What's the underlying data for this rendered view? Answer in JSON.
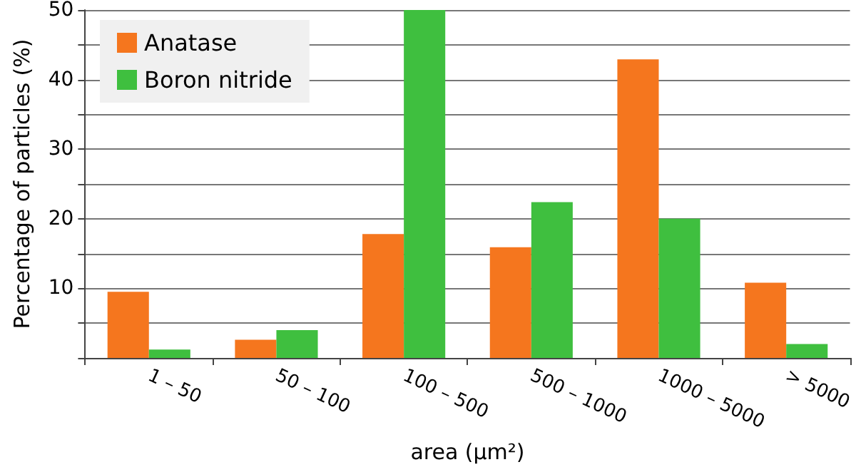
{
  "chart_data": {
    "type": "bar",
    "xlabel": "area (µm²)",
    "ylabel": "Percentage of particles (%)",
    "categories": [
      "1 – 50",
      "50 – 100",
      "100 – 500",
      "500 – 1000",
      "1000 – 5000",
      "> 5000"
    ],
    "series": [
      {
        "name": "Anatase",
        "color": "#f5761e",
        "values": [
          9.5,
          2.6,
          17.8,
          15.9,
          42.9,
          10.8
        ]
      },
      {
        "name": "Boron nitride",
        "color": "#3fbf3f",
        "values": [
          1.2,
          4.0,
          50,
          22.4,
          20.0,
          2.0
        ]
      }
    ],
    "ylim": [
      0,
      50
    ],
    "yticks": [
      {
        "value": 0,
        "label": null
      },
      {
        "value": 5,
        "label": null
      },
      10,
      {
        "value": 15,
        "label": null
      },
      20,
      {
        "value": 25,
        "label": null
      },
      30,
      {
        "value": 35,
        "label": null
      },
      40,
      {
        "value": 45,
        "label": null
      },
      50
    ],
    "grid": "y",
    "legend": "top left"
  }
}
